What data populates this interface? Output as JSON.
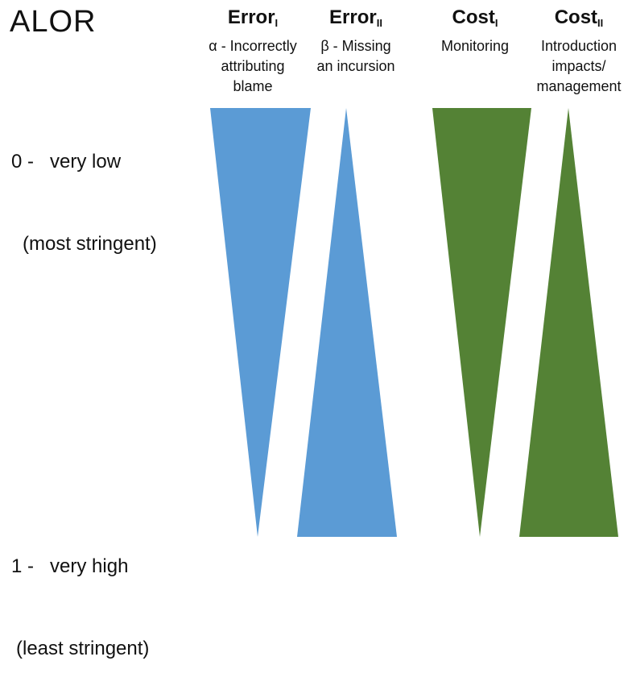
{
  "title": "ALOR",
  "scale": {
    "top": {
      "value": "0 -",
      "level": "very low",
      "note": "(most stringent)"
    },
    "bottom": {
      "value": "1 -",
      "level": "very high",
      "note": "(least stringent)"
    }
  },
  "columns": [
    {
      "label": "Error",
      "sub": "I",
      "desc_lines": [
        "α - Incorrectly",
        "attributing",
        "blame"
      ],
      "color": "#5b9bd5",
      "direction": "decreasing"
    },
    {
      "label": "Error",
      "sub": "II",
      "desc_lines": [
        "β - Missing",
        "an incursion"
      ],
      "color": "#5b9bd5",
      "direction": "increasing"
    },
    {
      "label": "Cost",
      "sub": "I",
      "desc_lines": [
        "Monitoring"
      ],
      "color": "#548235",
      "direction": "decreasing"
    },
    {
      "label": "Cost",
      "sub": "II",
      "desc_lines": [
        "Introduction",
        "impacts/",
        "management"
      ],
      "color": "#548235",
      "direction": "increasing"
    }
  ]
}
